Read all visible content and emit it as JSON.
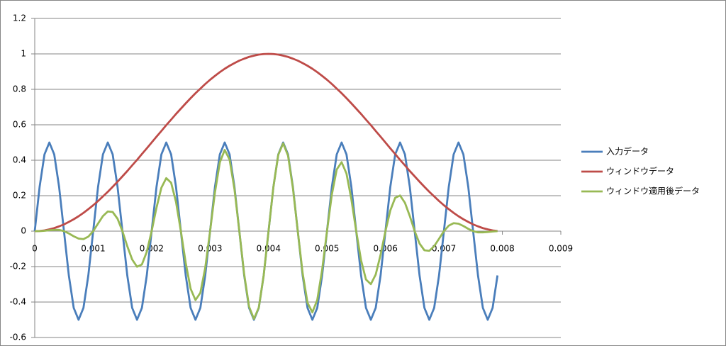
{
  "chart_data": {
    "type": "line",
    "x": [
      0,
      8.33e-05,
      0.0001667,
      0.00025,
      0.0003333,
      0.0004167,
      0.0005,
      0.0005833,
      0.0006667,
      0.00075,
      0.0008333,
      0.0009167,
      0.001,
      0.0010833,
      0.0011667,
      0.00125,
      0.0013333,
      0.0014167,
      0.0015,
      0.0015833,
      0.0016667,
      0.00175,
      0.0018333,
      0.0019167,
      0.002,
      0.0020833,
      0.0021667,
      0.00225,
      0.0023333,
      0.0024167,
      0.0025,
      0.0025833,
      0.0026667,
      0.00275,
      0.0028333,
      0.0029167,
      0.003,
      0.0030833,
      0.0031667,
      0.00325,
      0.0033333,
      0.0034167,
      0.0035,
      0.0035833,
      0.0036667,
      0.00375,
      0.0038333,
      0.0039167,
      0.004,
      0.0040833,
      0.0041667,
      0.00425,
      0.0043333,
      0.0044167,
      0.0045,
      0.0045833,
      0.0046667,
      0.00475,
      0.0048333,
      0.0049167,
      0.005,
      0.0050833,
      0.0051667,
      0.00525,
      0.0053333,
      0.0054167,
      0.0055,
      0.0055833,
      0.0056667,
      0.00575,
      0.0058333,
      0.0059167,
      0.006,
      0.0060833,
      0.0061667,
      0.00625,
      0.0063333,
      0.0064167,
      0.0065,
      0.0065833,
      0.0066667,
      0.00675,
      0.0068333,
      0.0069167,
      0.007,
      0.0070833,
      0.0071667,
      0.00725,
      0.0073333,
      0.0074167,
      0.0075,
      0.0075833,
      0.0076667,
      0.00775,
      0.0078333,
      0.0079167
    ],
    "series": [
      {
        "name": "入力データ",
        "color": "#4a7ebb",
        "values": [
          0,
          0.25,
          0.433,
          0.5,
          0.433,
          0.25,
          0,
          -0.25,
          -0.433,
          -0.5,
          -0.433,
          -0.25,
          0,
          0.25,
          0.433,
          0.5,
          0.433,
          0.25,
          0,
          -0.25,
          -0.433,
          -0.5,
          -0.433,
          -0.25,
          0,
          0.25,
          0.433,
          0.5,
          0.433,
          0.25,
          0,
          -0.25,
          -0.433,
          -0.5,
          -0.433,
          -0.25,
          0,
          0.25,
          0.433,
          0.5,
          0.433,
          0.25,
          0,
          -0.25,
          -0.433,
          -0.5,
          -0.433,
          -0.25,
          0,
          0.25,
          0.433,
          0.5,
          0.433,
          0.25,
          0,
          -0.25,
          -0.433,
          -0.5,
          -0.433,
          -0.25,
          0,
          0.25,
          0.433,
          0.5,
          0.433,
          0.25,
          0,
          -0.25,
          -0.433,
          -0.5,
          -0.433,
          -0.25,
          0,
          0.25,
          0.433,
          0.5,
          0.433,
          0.25,
          0,
          -0.25,
          -0.433,
          -0.5,
          -0.433,
          -0.25,
          0,
          0.25,
          0.433,
          0.5,
          0.433,
          0.25,
          0,
          -0.25,
          -0.433,
          -0.5,
          -0.433,
          -0.25
        ]
      },
      {
        "name": "ウィンドウデータ",
        "color": "#be4b48",
        "values": [
          0,
          0.001,
          0.004,
          0.01,
          0.017,
          0.027,
          0.038,
          0.052,
          0.067,
          0.084,
          0.103,
          0.124,
          0.146,
          0.17,
          0.196,
          0.222,
          0.25,
          0.279,
          0.309,
          0.339,
          0.371,
          0.402,
          0.435,
          0.467,
          0.5,
          0.533,
          0.565,
          0.598,
          0.629,
          0.661,
          0.691,
          0.721,
          0.75,
          0.778,
          0.804,
          0.83,
          0.854,
          0.876,
          0.897,
          0.916,
          0.933,
          0.948,
          0.962,
          0.973,
          0.983,
          0.99,
          0.996,
          0.999,
          1,
          0.999,
          0.996,
          0.99,
          0.983,
          0.973,
          0.962,
          0.948,
          0.933,
          0.916,
          0.897,
          0.876,
          0.854,
          0.83,
          0.804,
          0.778,
          0.75,
          0.721,
          0.691,
          0.661,
          0.629,
          0.598,
          0.565,
          0.533,
          0.5,
          0.467,
          0.435,
          0.402,
          0.371,
          0.339,
          0.309,
          0.279,
          0.25,
          0.222,
          0.196,
          0.17,
          0.146,
          0.124,
          0.103,
          0.084,
          0.067,
          0.052,
          0.038,
          0.027,
          0.017,
          0.01,
          0.004,
          0.001
        ]
      },
      {
        "name": "ウィンドウ適用後データ",
        "color": "#98b954",
        "values": [
          0,
          0,
          0.002,
          0.005,
          0.007,
          0.007,
          0,
          -0.013,
          -0.029,
          -0.042,
          -0.045,
          -0.031,
          0,
          0.043,
          0.085,
          0.111,
          0.108,
          0.07,
          0,
          -0.085,
          -0.16,
          -0.201,
          -0.188,
          -0.117,
          0,
          0.133,
          0.245,
          0.299,
          0.273,
          0.165,
          0,
          -0.18,
          -0.325,
          -0.389,
          -0.348,
          -0.207,
          0,
          0.219,
          0.388,
          0.458,
          0.404,
          0.237,
          0,
          -0.243,
          -0.426,
          -0.495,
          -0.431,
          -0.25,
          0,
          0.25,
          0.431,
          0.495,
          0.426,
          0.243,
          0,
          -0.237,
          -0.404,
          -0.458,
          -0.388,
          -0.219,
          0,
          0.207,
          0.348,
          0.389,
          0.325,
          0.18,
          0,
          -0.165,
          -0.273,
          -0.299,
          -0.245,
          -0.133,
          0,
          0.117,
          0.188,
          0.201,
          0.16,
          0.085,
          0,
          -0.07,
          -0.108,
          -0.111,
          -0.085,
          -0.043,
          0,
          0.031,
          0.045,
          0.042,
          0.029,
          0.013,
          0,
          -0.007,
          -0.007,
          -0.005,
          -0.002,
          0
        ]
      }
    ],
    "xlim": [
      0,
      0.009
    ],
    "xticks": [
      0,
      0.001,
      0.002,
      0.003,
      0.004,
      0.005,
      0.006,
      0.007,
      0.008,
      0.009
    ],
    "ylim": [
      -0.6,
      1.2
    ],
    "yticks": [
      -0.6,
      -0.4,
      -0.2,
      0,
      0.2,
      0.4,
      0.6,
      0.8,
      1,
      1.2
    ],
    "grid": true,
    "legend": "right"
  }
}
